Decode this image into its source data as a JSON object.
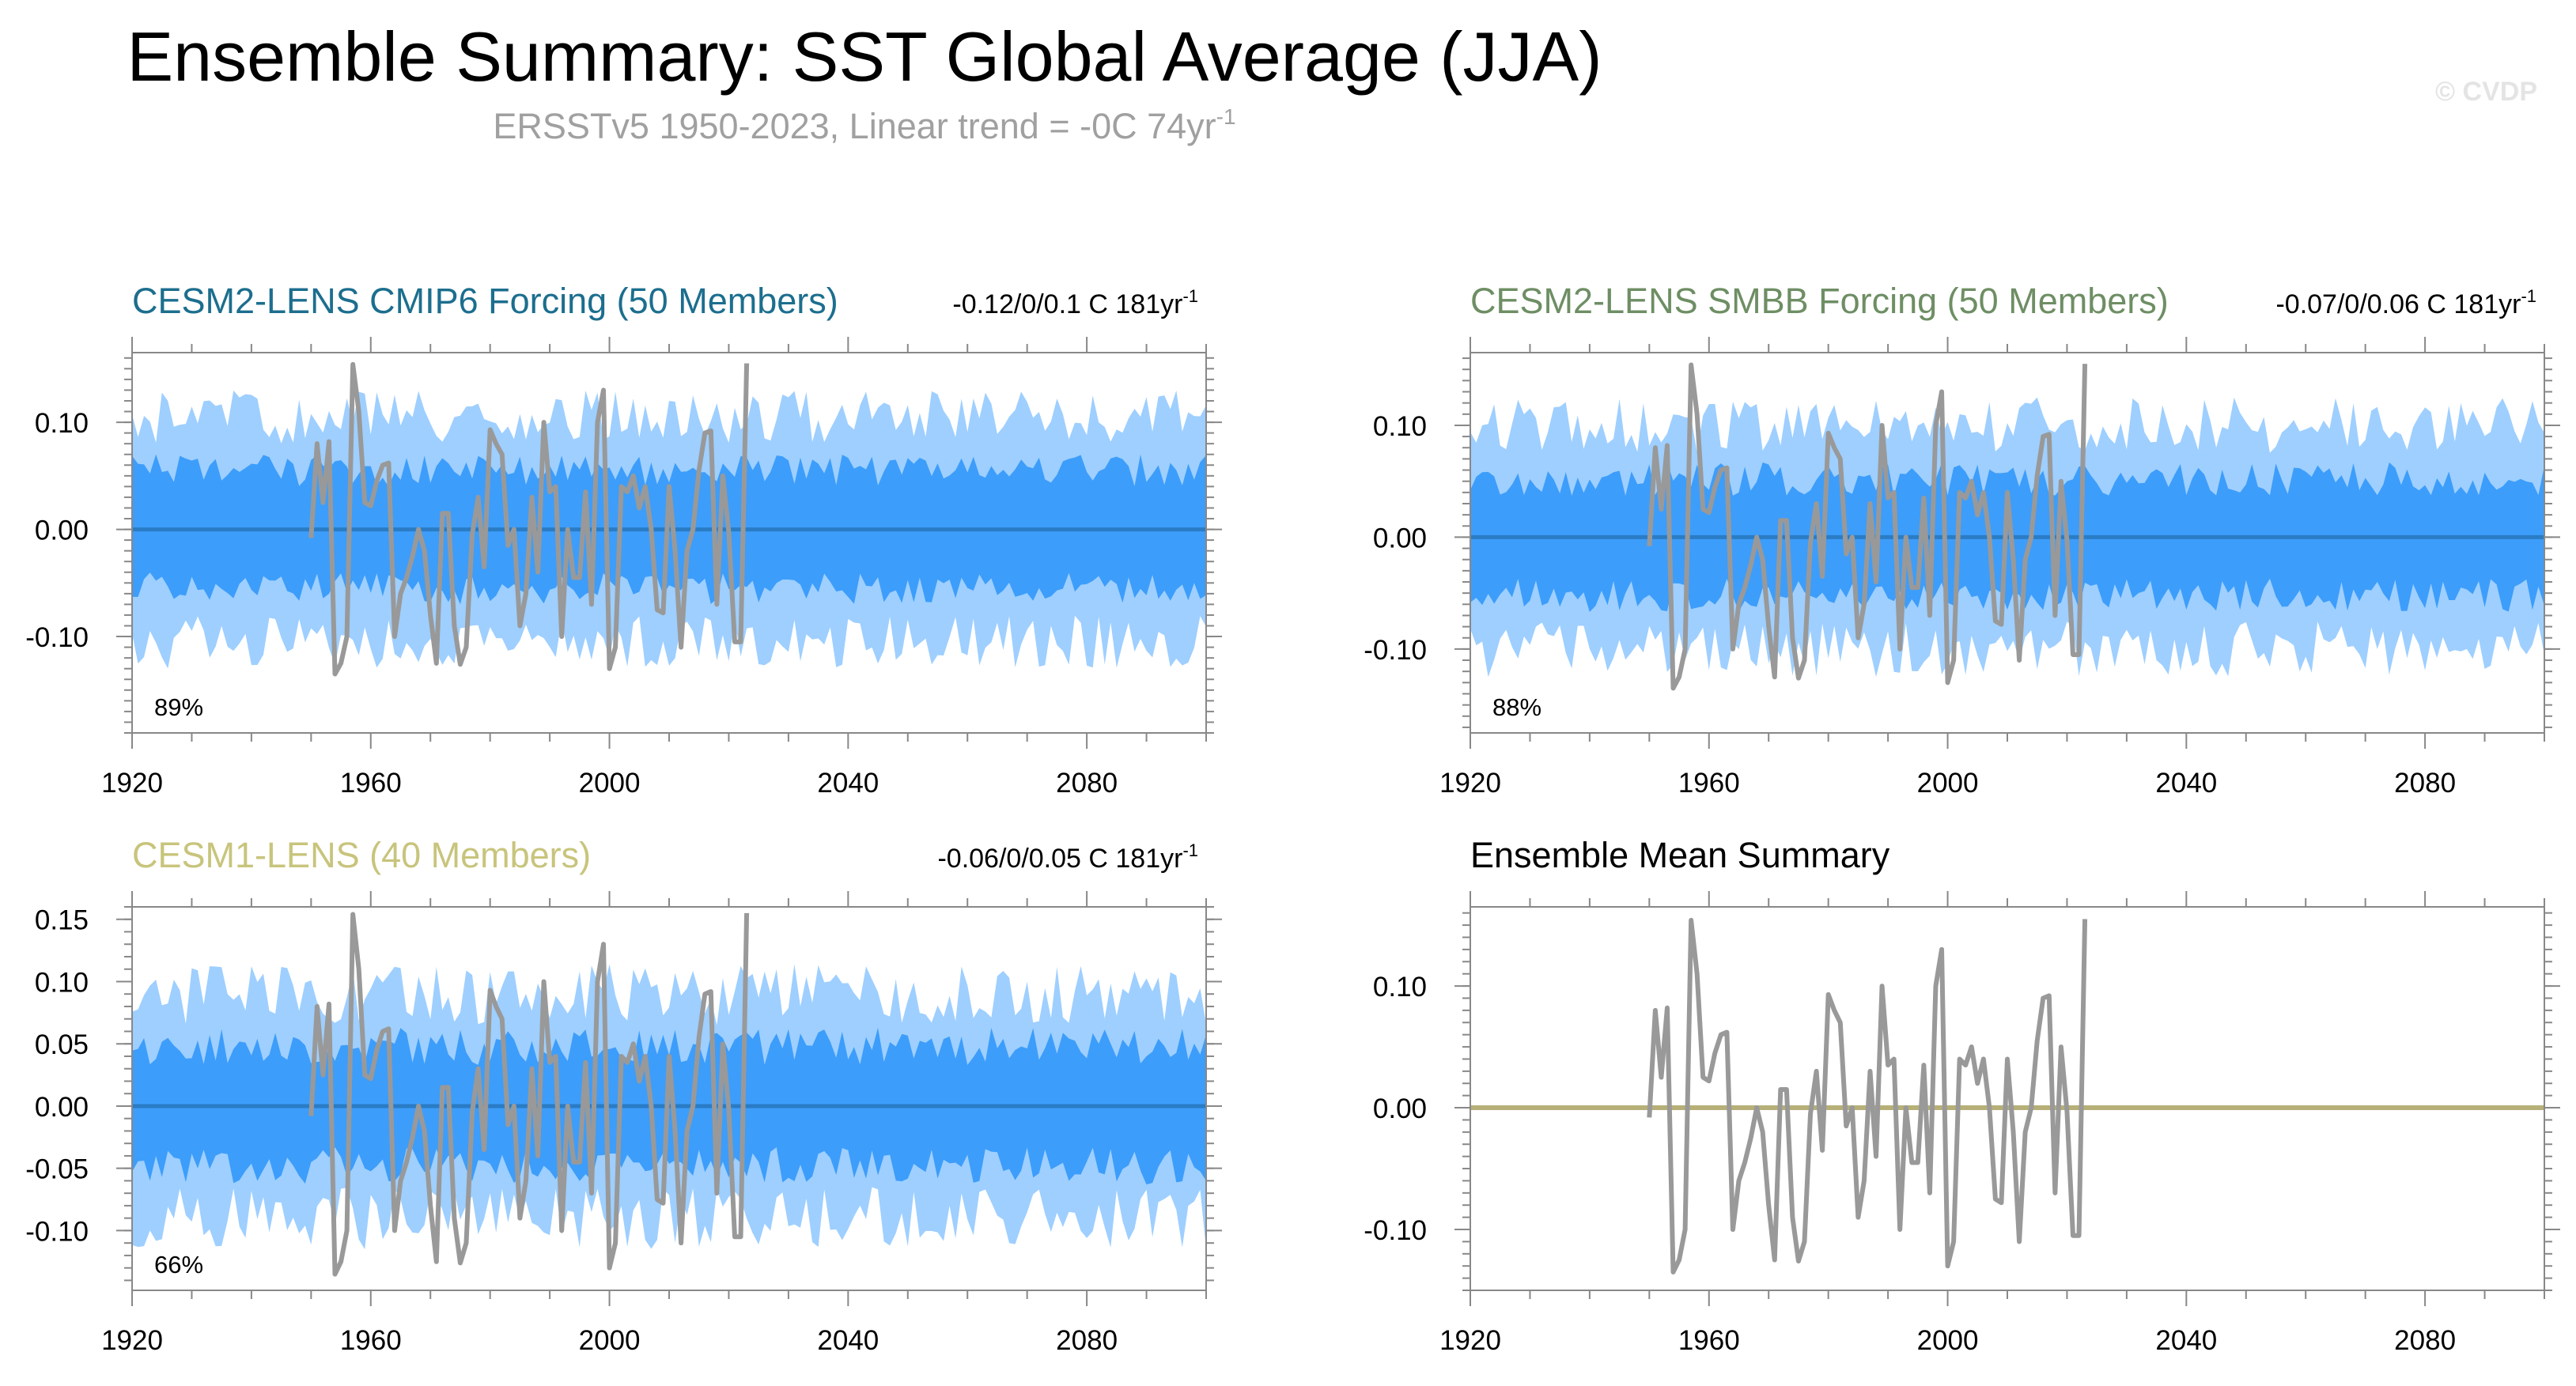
{
  "figure": {
    "title": "Ensemble Summary: SST Global Average (JJA)",
    "subtitle_main": "ERSSTv5 1950-2023, Linear trend = -0C 74yr",
    "subtitle_sup": "-1",
    "copyright": "© CVDP"
  },
  "colors": {
    "outer_band": "#9ecfff",
    "inner_band": "#3d9dfa",
    "ensemble_mean": "#2a7cc5",
    "observations": "#999999",
    "summary_mean": "#b6b078"
  },
  "chart_data": [
    {
      "type": "area",
      "panel": "top-left",
      "title": "CESM2-LENS CMIP6 Forcing (50 Members)",
      "title_color": "#1c6e8e",
      "trend_range": "-0.12/0/0.1 C 181yr",
      "trend_sup": "-1",
      "percent_label": "89%",
      "xlim": [
        1920,
        2100
      ],
      "ylim": [
        -0.19,
        0.165
      ],
      "x_ticks": [
        "1920",
        "1960",
        "2000",
        "2040",
        "2080"
      ],
      "y_ticks": [
        {
          "label": "0.10",
          "value": 0.1
        },
        {
          "label": "0.00",
          "value": 0.0
        },
        {
          "label": "-0.10",
          "value": -0.1
        }
      ],
      "band_seed": 1,
      "inner_half_width": 0.055,
      "outer_half_width": 0.105
    },
    {
      "type": "area",
      "panel": "top-right",
      "title": "CESM2-LENS SMBB Forcing (50 Members)",
      "title_color": "#6e8e64",
      "trend_range": "-0.07/0/0.06 C 181yr",
      "trend_sup": "-1",
      "percent_label": "88%",
      "xlim": [
        1920,
        2100
      ],
      "ylim": [
        -0.175,
        0.165
      ],
      "x_ticks": [
        "1920",
        "1960",
        "2000",
        "2040",
        "2080"
      ],
      "y_ticks": [
        {
          "label": "0.10",
          "value": 0.1
        },
        {
          "label": "0.00",
          "value": 0.0
        },
        {
          "label": "-0.10",
          "value": -0.1
        }
      ],
      "band_seed": 2,
      "inner_half_width": 0.052,
      "outer_half_width": 0.1
    },
    {
      "type": "area",
      "panel": "bottom-left",
      "title": "CESM1-LENS (40 Members)",
      "title_color": "#c8c47c",
      "trend_range": "-0.06/0/0.05 C 181yr",
      "trend_sup": "-1",
      "percent_label": "66%",
      "xlim": [
        1920,
        2100
      ],
      "ylim": [
        -0.148,
        0.16
      ],
      "x_ticks": [
        "1920",
        "1960",
        "2000",
        "2040",
        "2080"
      ],
      "y_ticks": [
        {
          "label": "0.15",
          "value": 0.15
        },
        {
          "label": "0.10",
          "value": 0.1
        },
        {
          "label": "0.05",
          "value": 0.05
        },
        {
          "label": "0.00",
          "value": 0.0
        },
        {
          "label": "-0.05",
          "value": -0.05
        },
        {
          "label": "-0.10",
          "value": -0.1
        }
      ],
      "band_seed": 3,
      "inner_half_width": 0.048,
      "outer_half_width": 0.09
    },
    {
      "type": "line",
      "panel": "bottom-right",
      "title": "Ensemble Mean Summary",
      "title_color": "#000000",
      "xlim": [
        1920,
        2100
      ],
      "ylim": [
        -0.15,
        0.165
      ],
      "x_ticks": [
        "1920",
        "1960",
        "2000",
        "2040",
        "2080"
      ],
      "y_ticks": [
        {
          "label": "0.10",
          "value": 0.1
        },
        {
          "label": "0.00",
          "value": 0.0
        },
        {
          "label": "-0.10",
          "value": -0.1
        }
      ],
      "series": [
        {
          "name": "ensemble-mean",
          "x": [
            1920,
            2100
          ],
          "values": [
            0,
            0
          ]
        }
      ]
    }
  ],
  "observations": {
    "name": "ERSSTv5",
    "years": [
      1950,
      1951,
      1952,
      1953,
      1954,
      1955,
      1956,
      1957,
      1958,
      1959,
      1960,
      1961,
      1962,
      1963,
      1964,
      1965,
      1966,
      1967,
      1968,
      1969,
      1970,
      1971,
      1972,
      1973,
      1974,
      1975,
      1976,
      1977,
      1978,
      1979,
      1980,
      1981,
      1982,
      1983,
      1984,
      1985,
      1986,
      1987,
      1988,
      1989,
      1990,
      1991,
      1992,
      1993,
      1994,
      1995,
      1996,
      1997,
      1998,
      1999,
      2000,
      2001,
      2002,
      2003,
      2004,
      2005,
      2006,
      2007,
      2008,
      2009,
      2010,
      2011,
      2012,
      2013,
      2014,
      2015,
      2016,
      2017,
      2018,
      2019,
      2020,
      2021,
      2022,
      2023
    ],
    "values": [
      -0.008,
      0.08,
      0.025,
      0.082,
      -0.135,
      -0.125,
      -0.1,
      0.154,
      0.11,
      0.025,
      0.022,
      0.045,
      0.06,
      0.062,
      -0.1,
      -0.06,
      -0.045,
      -0.025,
      0.0,
      -0.02,
      -0.08,
      -0.125,
      0.015,
      0.015,
      -0.09,
      -0.126,
      -0.11,
      -0.005,
      0.03,
      -0.035,
      0.093,
      0.08,
      0.07,
      -0.015,
      0.0,
      -0.09,
      -0.06,
      0.03,
      -0.04,
      0.1,
      0.035,
      0.04,
      -0.1,
      0.0,
      -0.045,
      -0.045,
      0.035,
      -0.07,
      0.1,
      0.13,
      -0.13,
      -0.11,
      0.04,
      0.035,
      0.05,
      0.02,
      0.04,
      0.0,
      -0.075,
      -0.078,
      0.04,
      -0.02,
      -0.11,
      -0.02,
      0.0,
      0.055,
      0.09,
      0.092,
      -0.07,
      0.05,
      -0.003,
      -0.105,
      -0.105,
      0.155
    ]
  }
}
